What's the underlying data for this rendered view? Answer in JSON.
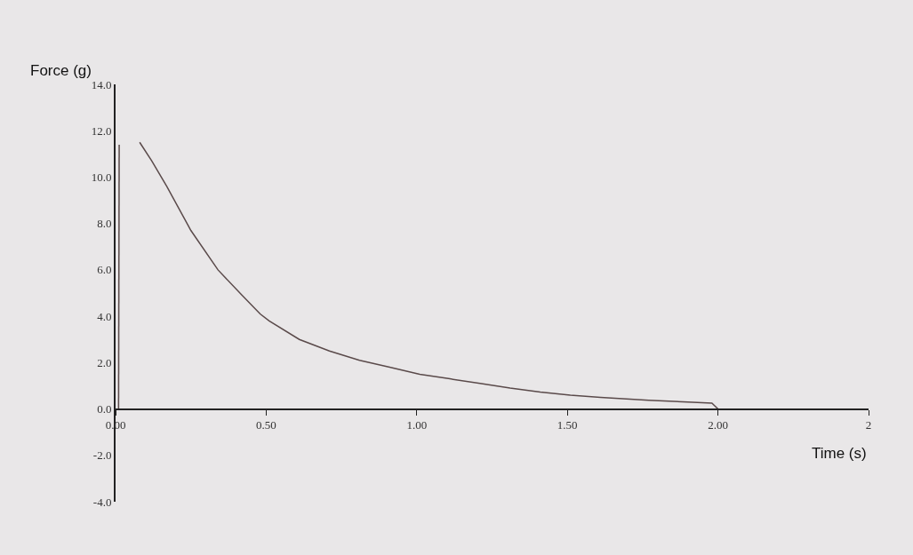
{
  "chart_data": {
    "type": "line",
    "xlabel": "Time (s)",
    "ylabel": "Force (g)",
    "x": [
      0.01,
      0.012,
      0.05,
      0.08,
      0.12,
      0.17,
      0.25,
      0.34,
      0.42,
      0.48,
      0.51,
      0.61,
      0.71,
      0.81,
      0.91,
      1.01,
      1.11,
      1.21,
      1.31,
      1.41,
      1.51,
      1.61,
      1.77,
      1.9,
      1.98,
      2.0
    ],
    "series": [
      {
        "color": "#5a4a4a",
        "values": [
          0,
          11.4,
          null,
          11.5,
          10.7,
          9.6,
          7.7,
          6.0,
          4.9,
          4.1,
          3.8,
          3.0,
          2.5,
          2.1,
          1.8,
          1.5,
          1.3,
          1.1,
          0.9,
          0.73,
          0.6,
          0.5,
          0.38,
          0.3,
          0.25,
          0
        ]
      }
    ],
    "xlim": [
      0,
      2.5
    ],
    "xticks": [
      {
        "value": 0,
        "label": "0.00"
      },
      {
        "value": 0.5,
        "label": "0.50"
      },
      {
        "value": 1,
        "label": "1.00"
      },
      {
        "value": 1.5,
        "label": "1.50"
      },
      {
        "value": 2,
        "label": "2.00"
      },
      {
        "value": 2.5,
        "label": "2"
      }
    ],
    "ylim": [
      -4,
      14
    ],
    "yticks": [
      {
        "value": -4,
        "label": "-4.0"
      },
      {
        "value": -2,
        "label": "-2.0"
      },
      {
        "value": 0,
        "label": "0.0"
      },
      {
        "value": 2,
        "label": "2.0"
      },
      {
        "value": 4,
        "label": "4.0"
      },
      {
        "value": 6,
        "label": "6.0"
      },
      {
        "value": 8,
        "label": "8.0"
      },
      {
        "value": 10,
        "label": "10.0"
      },
      {
        "value": 12,
        "label": "12.0"
      },
      {
        "value": 14,
        "label": "14.0"
      }
    ],
    "marker": "none",
    "line_style": "solid"
  }
}
